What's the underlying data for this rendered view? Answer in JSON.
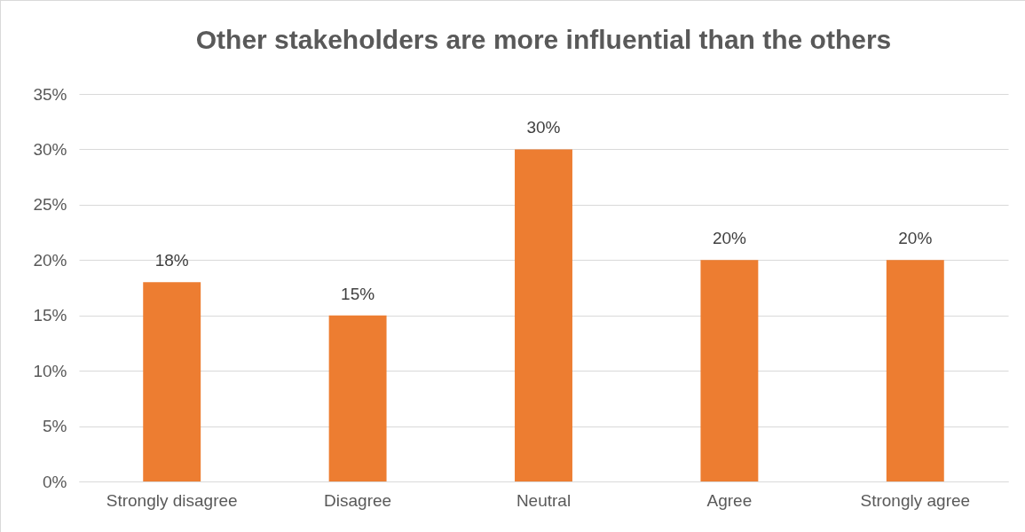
{
  "chart_data": {
    "type": "bar",
    "title": "Other stakeholders are more influential than the others",
    "categories": [
      "Strongly disagree",
      "Disagree",
      "Neutral",
      "Agree",
      "Strongly agree"
    ],
    "values": [
      18,
      15,
      30,
      20,
      20
    ],
    "value_labels": [
      "18%",
      "15%",
      "30%",
      "20%",
      "20%"
    ],
    "color": "#ed7d31",
    "ylim": [
      0,
      35
    ],
    "yticks": [
      {
        "value": 0,
        "label": "0%"
      },
      {
        "value": 5,
        "label": "5%"
      },
      {
        "value": 10,
        "label": "10%"
      },
      {
        "value": 15,
        "label": "15%"
      },
      {
        "value": 20,
        "label": "20%"
      },
      {
        "value": 25,
        "label": "25%"
      },
      {
        "value": 30,
        "label": "30%"
      },
      {
        "value": 35,
        "label": "35%"
      }
    ],
    "grid": "y"
  }
}
